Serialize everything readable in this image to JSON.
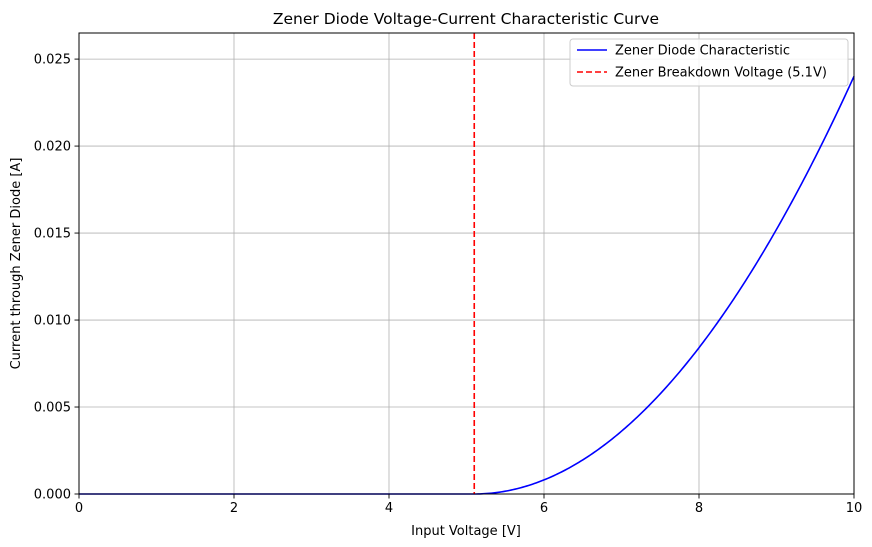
{
  "chart_data": {
    "type": "line",
    "title": "Zener Diode Voltage-Current Characteristic Curve",
    "xlabel": "Input Voltage [V]",
    "ylabel": "Current through Zener Diode [A]",
    "xlim": [
      0,
      10
    ],
    "ylim": [
      0,
      0.0265
    ],
    "grid": true,
    "legend_position": "top-right",
    "xticks": [
      0,
      2,
      4,
      6,
      8,
      10
    ],
    "xtick_labels": [
      "0",
      "2",
      "4",
      "6",
      "8",
      "10"
    ],
    "yticks": [
      0,
      0.005,
      0.01,
      0.015,
      0.02,
      0.025
    ],
    "ytick_labels": [
      "0.000",
      "0.005",
      "0.010",
      "0.015",
      "0.020",
      "0.025"
    ],
    "series": [
      {
        "name": "Zener Diode Characteristic",
        "color": "#0000ff",
        "style": "solid",
        "model": "I = k * max(V - Vz, 0)^2",
        "k": 0.001,
        "vz": 5.1,
        "x": [
          0,
          1,
          2,
          3,
          4,
          5,
          5.1,
          5.5,
          6,
          6.5,
          7,
          7.5,
          8,
          8.5,
          9,
          9.5,
          10
        ],
        "y": [
          0,
          0,
          0,
          0,
          0,
          0,
          0,
          0.00016,
          0.00081,
          0.00196,
          0.00361,
          0.00576,
          0.00841,
          0.01156,
          0.01521,
          0.01936,
          0.02401
        ]
      },
      {
        "name": "Zener Breakdown Voltage (5.1V)",
        "color": "#ff0000",
        "style": "dashed",
        "type": "vline",
        "x_value": 5.1
      }
    ]
  },
  "colors": {
    "grid": "#b0b0b0",
    "axis": "#000000",
    "legend_border": "#cccccc"
  }
}
